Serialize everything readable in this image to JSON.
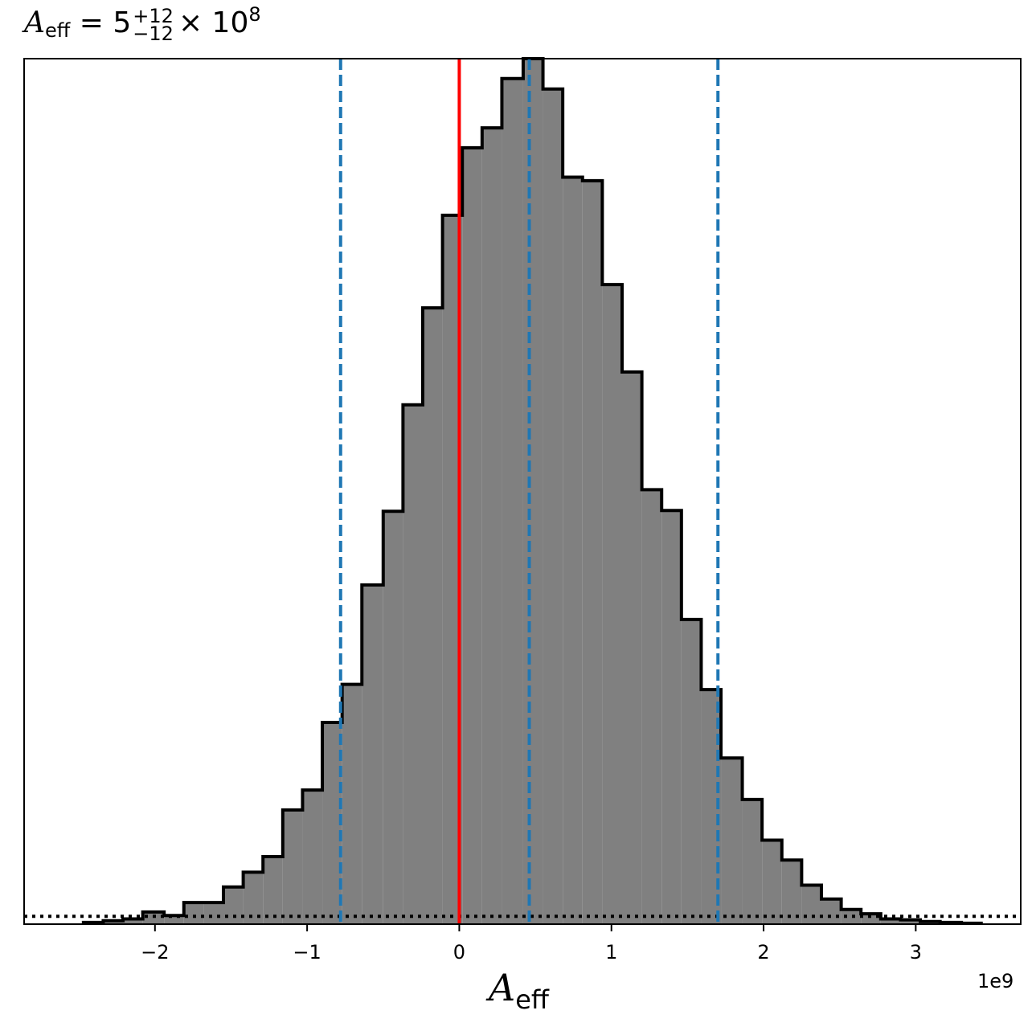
{
  "chart_data": {
    "type": "histogram",
    "title": {
      "symbol": "A",
      "symbol_sub": "eff",
      "equals": "= 5",
      "err_plus": "+12",
      "err_minus": "−12",
      "times": "× 10",
      "exponent": "8"
    },
    "xlabel": {
      "symbol": "A",
      "sub": "eff"
    },
    "x_offset_label": "1e9",
    "xlim": [
      -2.86,
      3.69
    ],
    "ylim": [
      0,
      1.0
    ],
    "xticks": [
      {
        "value": -2,
        "label": "−2"
      },
      {
        "value": -1,
        "label": "−1"
      },
      {
        "value": 0,
        "label": "0"
      },
      {
        "value": 1,
        "label": "1"
      },
      {
        "value": 2,
        "label": "2"
      },
      {
        "value": 3,
        "label": "3"
      }
    ],
    "y_axis_ticks": "none",
    "grid": false,
    "bin_edges": [
      -2.47,
      -2.34,
      -2.21,
      -2.08,
      -1.94,
      -1.81,
      -1.68,
      -1.55,
      -1.42,
      -1.29,
      -1.16,
      -1.03,
      -0.9,
      -0.77,
      -0.64,
      -0.5,
      -0.37,
      -0.24,
      -0.11,
      0.02,
      0.15,
      0.28,
      0.42,
      0.55,
      0.68,
      0.81,
      0.94,
      1.07,
      1.2,
      1.33,
      1.46,
      1.59,
      1.72,
      1.86,
      1.99,
      2.12,
      2.25,
      2.38,
      2.51,
      2.64,
      2.77,
      2.9,
      3.03,
      3.16,
      3.3,
      3.43
    ],
    "bin_values": [
      0.002,
      0.004,
      0.006,
      0.014,
      0.01,
      0.025,
      0.025,
      0.043,
      0.06,
      0.078,
      0.132,
      0.155,
      0.233,
      0.277,
      0.392,
      0.477,
      0.6,
      0.712,
      0.819,
      0.897,
      0.92,
      0.977,
      1.0,
      0.965,
      0.863,
      0.859,
      0.739,
      0.638,
      0.502,
      0.478,
      0.352,
      0.271,
      0.192,
      0.144,
      0.097,
      0.074,
      0.045,
      0.029,
      0.017,
      0.012,
      0.006,
      0.005,
      0.003,
      0.002,
      0.001
    ],
    "fill_color": "#808080",
    "edge_color": "#000000",
    "vlines": [
      {
        "name": "truth",
        "x": 0.0,
        "color": "#ff0000",
        "style": "solid"
      },
      {
        "name": "lower-quantile",
        "x": -0.78,
        "color": "#1f77b4",
        "style": "dashed"
      },
      {
        "name": "median",
        "x": 0.46,
        "color": "#1f77b4",
        "style": "dashed"
      },
      {
        "name": "upper-quantile",
        "x": 1.7,
        "color": "#1f77b4",
        "style": "dashed"
      }
    ],
    "hline": {
      "y": 0.009,
      "color": "#000000",
      "style": "dotted"
    }
  }
}
